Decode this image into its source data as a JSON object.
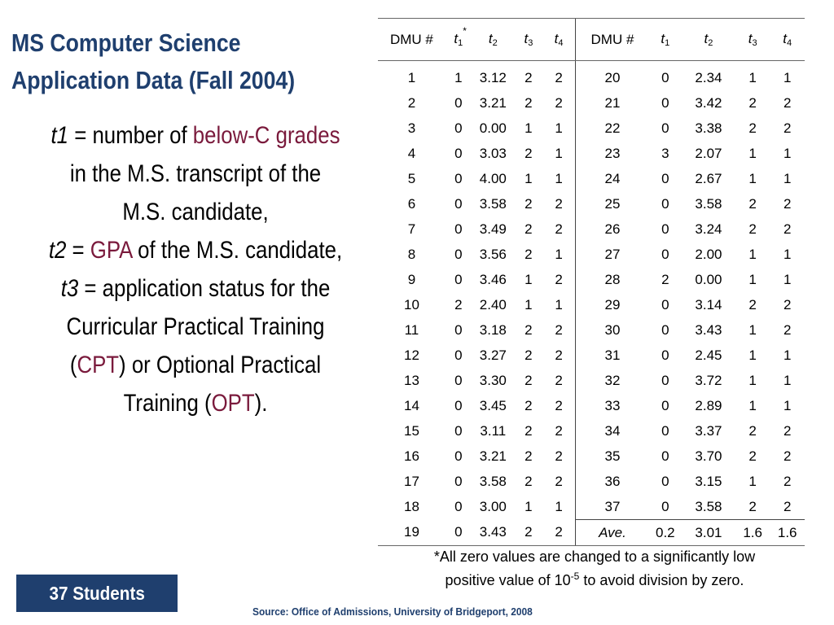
{
  "title": {
    "line1": "MS Computer Science",
    "line2": "Application Data (Fall 2004)"
  },
  "description": {
    "t1": "t1",
    "eq": "=",
    "number_of": "number of",
    "below_c": "below-C grades",
    "in_transcript": "in the M.S. transcript of the",
    "candidate": "M.S. candidate,",
    "t2": "t2",
    "gpa": "GPA",
    "of_candidate": "of the M.S. candidate,",
    "t3": "t3",
    "app_status": "= application status for the",
    "curricular": "Curricular Practical Training",
    "open_paren": "(",
    "cpt": "CPT",
    "or_optional": ") or Optional Practical",
    "training": "Training (",
    "opt": "OPT",
    "close": ")."
  },
  "table": {
    "headers": {
      "dmu": "DMU #",
      "t": "t",
      "sub1": "1",
      "sub2": "2",
      "sub3": "3",
      "sub4": "4",
      "star": "*"
    },
    "rows": [
      {
        "left": [
          "1",
          "1",
          "3.12",
          "2",
          "2"
        ],
        "right": [
          "20",
          "0",
          "2.34",
          "1",
          "1"
        ]
      },
      {
        "left": [
          "2",
          "0",
          "3.21",
          "2",
          "2"
        ],
        "right": [
          "21",
          "0",
          "3.42",
          "2",
          "2"
        ]
      },
      {
        "left": [
          "3",
          "0",
          "0.00",
          "1",
          "1"
        ],
        "right": [
          "22",
          "0",
          "3.38",
          "2",
          "2"
        ]
      },
      {
        "left": [
          "4",
          "0",
          "3.03",
          "2",
          "1"
        ],
        "right": [
          "23",
          "3",
          "2.07",
          "1",
          "1"
        ]
      },
      {
        "left": [
          "5",
          "0",
          "4.00",
          "1",
          "1"
        ],
        "right": [
          "24",
          "0",
          "2.67",
          "1",
          "1"
        ]
      },
      {
        "left": [
          "6",
          "0",
          "3.58",
          "2",
          "2"
        ],
        "right": [
          "25",
          "0",
          "3.58",
          "2",
          "2"
        ]
      },
      {
        "left": [
          "7",
          "0",
          "3.49",
          "2",
          "2"
        ],
        "right": [
          "26",
          "0",
          "3.24",
          "2",
          "2"
        ]
      },
      {
        "left": [
          "8",
          "0",
          "3.56",
          "2",
          "1"
        ],
        "right": [
          "27",
          "0",
          "2.00",
          "1",
          "1"
        ]
      },
      {
        "left": [
          "9",
          "0",
          "3.46",
          "1",
          "2"
        ],
        "right": [
          "28",
          "2",
          "0.00",
          "1",
          "1"
        ]
      },
      {
        "left": [
          "10",
          "2",
          "2.40",
          "1",
          "1"
        ],
        "right": [
          "29",
          "0",
          "3.14",
          "2",
          "2"
        ]
      },
      {
        "left": [
          "11",
          "0",
          "3.18",
          "2",
          "2"
        ],
        "right": [
          "30",
          "0",
          "3.43",
          "1",
          "2"
        ]
      },
      {
        "left": [
          "12",
          "0",
          "3.27",
          "2",
          "2"
        ],
        "right": [
          "31",
          "0",
          "2.45",
          "1",
          "1"
        ]
      },
      {
        "left": [
          "13",
          "0",
          "3.30",
          "2",
          "2"
        ],
        "right": [
          "32",
          "0",
          "3.72",
          "1",
          "1"
        ]
      },
      {
        "left": [
          "14",
          "0",
          "3.45",
          "2",
          "2"
        ],
        "right": [
          "33",
          "0",
          "2.89",
          "1",
          "1"
        ]
      },
      {
        "left": [
          "15",
          "0",
          "3.11",
          "2",
          "2"
        ],
        "right": [
          "34",
          "0",
          "3.37",
          "2",
          "2"
        ]
      },
      {
        "left": [
          "16",
          "0",
          "3.21",
          "2",
          "2"
        ],
        "right": [
          "35",
          "0",
          "3.70",
          "2",
          "2"
        ]
      },
      {
        "left": [
          "17",
          "0",
          "3.58",
          "2",
          "2"
        ],
        "right": [
          "36",
          "0",
          "3.15",
          "1",
          "2"
        ]
      },
      {
        "left": [
          "18",
          "0",
          "3.00",
          "1",
          "1"
        ],
        "right": [
          "37",
          "0",
          "3.58",
          "2",
          "2"
        ]
      },
      {
        "left": [
          "19",
          "0",
          "3.43",
          "2",
          "2"
        ],
        "right": [
          "Ave.",
          "0.2",
          "3.01",
          "1.6",
          "1.6"
        ]
      }
    ]
  },
  "note": {
    "line1": "*All zero values are changed to a significantly low",
    "line2_pre": "positive value of 10",
    "exp": "-5",
    "line2_post": " to avoid division by zero."
  },
  "footer": {
    "students": "37 Students",
    "source": "Source: Office of Admissions, University of Bridgeport, 2008"
  },
  "colors": {
    "title": "#1f3f6e",
    "highlight": "#7a1a3c",
    "footer_box": "#1f3f6e"
  }
}
